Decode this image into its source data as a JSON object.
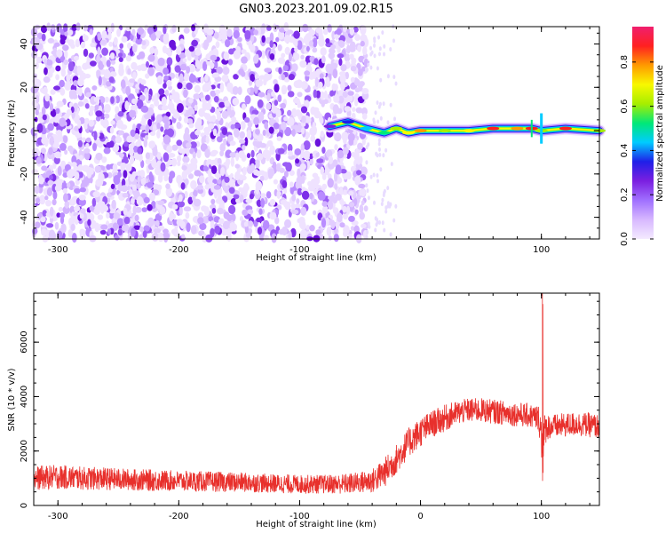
{
  "title": "GN03.2023.201.09.02.R15",
  "chart_data": [
    {
      "type": "heatmap",
      "xlabel": "Height of straight line (km)",
      "ylabel": "Frequency (Hz)",
      "xlim": [
        -320,
        148
      ],
      "ylim": [
        -50,
        48
      ],
      "xticks": [
        -300,
        -200,
        -100,
        0,
        100
      ],
      "yticks": [
        -40,
        -20,
        0,
        20,
        40
      ],
      "colorbar": {
        "label": "Normalized spectral amplitude",
        "range": [
          0,
          0.96
        ],
        "ticks": [
          0.0,
          0.2,
          0.4,
          0.6,
          0.8
        ],
        "tick_labels": [
          "0.0",
          "0.2",
          "0.4",
          "0.6",
          "0.8"
        ],
        "colormap": "rainbow: white-lavender-purple-blue-cyan-green-yellow-orange-red-magenta",
        "colors": [
          "#f4eaff",
          "#d7b8ff",
          "#a070ff",
          "#7b1fe0",
          "#1f1fe8",
          "#00ccff",
          "#00e878",
          "#a6ee00",
          "#f8f800",
          "#ff9a00",
          "#ff2020",
          "#f01f6e"
        ]
      },
      "noise_region_x": [
        -320,
        -45
      ],
      "signal_band": [
        {
          "x": -75,
          "freq": 2,
          "amp": 0.3
        },
        {
          "x": -60,
          "freq": 4,
          "amp": 0.35
        },
        {
          "x": -45,
          "freq": 1,
          "amp": 0.4
        },
        {
          "x": -30,
          "freq": -1,
          "amp": 0.5
        },
        {
          "x": -20,
          "freq": 1,
          "amp": 0.6
        },
        {
          "x": -10,
          "freq": -1,
          "amp": 0.7
        },
        {
          "x": 0,
          "freq": 0,
          "amp": 0.82
        },
        {
          "x": 20,
          "freq": 0,
          "amp": 0.6
        },
        {
          "x": 40,
          "freq": 0,
          "amp": 0.7
        },
        {
          "x": 60,
          "freq": 1,
          "amp": 0.85
        },
        {
          "x": 80,
          "freq": 1,
          "amp": 0.8
        },
        {
          "x": 92,
          "freq": 1,
          "amp": 0.88
        },
        {
          "x": 100,
          "freq": 0,
          "amp": 0.6
        },
        {
          "x": 120,
          "freq": 1,
          "amp": 0.88
        },
        {
          "x": 148,
          "freq": 0,
          "amp": 0.6
        }
      ]
    },
    {
      "type": "line",
      "xlabel": "Height of straight line (km)",
      "ylabel": "SNR (10 * v/v)",
      "xlim": [
        -320,
        148
      ],
      "ylim": [
        0,
        7800
      ],
      "xticks": [
        -300,
        -200,
        -100,
        0,
        100
      ],
      "yticks": [
        0,
        2000,
        4000,
        6000
      ],
      "color": "#e8302c",
      "series": [
        {
          "x": [
            -320,
            -300,
            -280,
            -260,
            -240,
            -220,
            -200,
            -180,
            -160,
            -140,
            -120,
            -100,
            -80,
            -60,
            -50,
            -40,
            -30,
            -20,
            -10,
            0,
            10,
            20,
            30,
            40,
            50,
            60,
            70,
            80,
            90,
            98,
            101,
            104,
            110,
            120,
            130,
            140,
            148
          ],
          "y": [
            1000,
            1050,
            1000,
            980,
            950,
            920,
            900,
            880,
            860,
            840,
            800,
            780,
            780,
            800,
            850,
            900,
            1200,
            1700,
            2300,
            2700,
            3000,
            3200,
            3400,
            3500,
            3500,
            3450,
            3400,
            3350,
            3300,
            3200,
            2200,
            2900,
            2900,
            2950,
            3000,
            2950,
            2900
          ],
          "spread": [
            450,
            450,
            430,
            420,
            400,
            400,
            380,
            380,
            370,
            360,
            350,
            350,
            350,
            380,
            400,
            450,
            550,
            550,
            550,
            550,
            500,
            500,
            450,
            450,
            450,
            450,
            450,
            450,
            450,
            500,
            1200,
            500,
            450,
            450,
            450,
            450,
            450
          ]
        }
      ]
    }
  ]
}
